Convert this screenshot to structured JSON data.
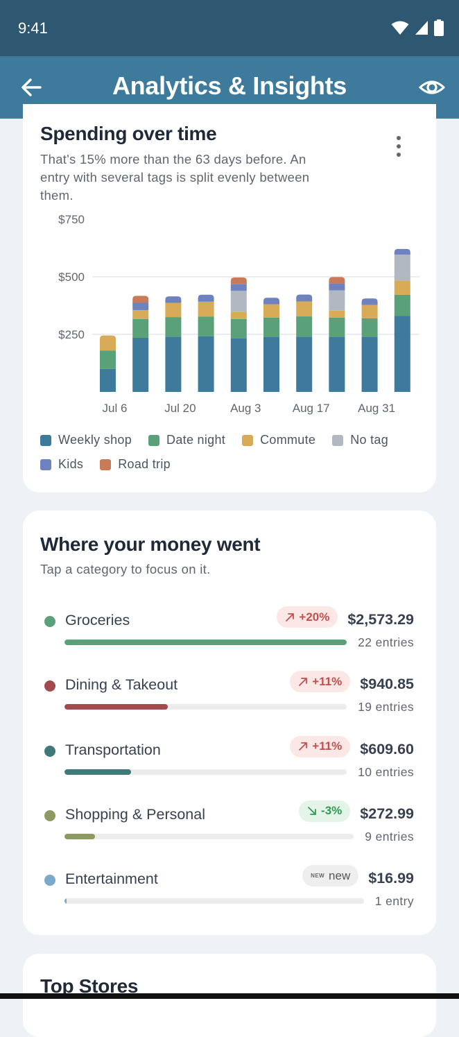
{
  "status_bar": {
    "time": "9:41"
  },
  "app_bar": {
    "title": "Analytics & Insights"
  },
  "spending_card": {
    "title": "Spending over time",
    "subtitle_lines": [
      "That's 15% more than the 63 days before. An",
      "entry with several tags is split evenly between",
      "them."
    ]
  },
  "chart_data": {
    "type": "bar",
    "stacked": true,
    "x_tick_labels": [
      "Jul 6",
      "Jul 20",
      "Aug 3",
      "Aug 17",
      "Aug 31"
    ],
    "y_tick_labels": [
      "$250",
      "$500",
      "$750"
    ],
    "ylim": [
      0,
      750
    ],
    "yticks": [
      250,
      500,
      750
    ],
    "grid": true,
    "legend_position": "bottom",
    "colors": {
      "Weekly shop": "#3d7a9c",
      "Date night": "#5aa17a",
      "Commute": "#d8ab58",
      "No tag": "#b2b8c2",
      "Kids": "#6f82c0",
      "Road trip": "#c97a58"
    },
    "series": [
      {
        "name": "Weekly shop",
        "values": [
          100,
          235,
          240,
          242,
          232,
          238,
          240,
          238,
          238,
          330
        ]
      },
      {
        "name": "Date night",
        "values": [
          80,
          82,
          85,
          85,
          85,
          85,
          88,
          85,
          82,
          92
        ]
      },
      {
        "name": "Commute",
        "values": [
          65,
          38,
          62,
          65,
          30,
          58,
          65,
          30,
          58,
          62
        ]
      },
      {
        "name": "No tag",
        "values": [
          0,
          0,
          0,
          0,
          92,
          0,
          0,
          88,
          0,
          112
        ]
      },
      {
        "name": "Kids",
        "values": [
          0,
          32,
          28,
          30,
          30,
          28,
          30,
          30,
          28,
          25
        ]
      },
      {
        "name": "Road trip",
        "values": [
          0,
          30,
          0,
          0,
          28,
          0,
          0,
          28,
          0,
          0
        ]
      }
    ]
  },
  "categories_card": {
    "title": "Where your money went",
    "subtitle": "Tap a category to focus on it.",
    "items": [
      {
        "name": "Groceries",
        "color": "#5aa17a",
        "trend": "up",
        "change": "+20%",
        "amount": "$2,573.29",
        "entries": "22 entries",
        "share": 1.0
      },
      {
        "name": "Dining & Takeout",
        "color": "#a24a4f",
        "trend": "up",
        "change": "+11%",
        "amount": "$940.85",
        "entries": "19 entries",
        "share": 0.366
      },
      {
        "name": "Transportation",
        "color": "#3d7a78",
        "trend": "up",
        "change": "+11%",
        "amount": "$609.60",
        "entries": "10 entries",
        "share": 0.237
      },
      {
        "name": "Shopping & Personal",
        "color": "#8c9a62",
        "trend": "down",
        "change": "-3%",
        "amount": "$272.99",
        "entries": "9 entries",
        "share": 0.106
      },
      {
        "name": "Entertainment",
        "color": "#7aa9c9",
        "trend": "new",
        "change": "new",
        "new_tag": "NEW",
        "amount": "$16.99",
        "entries": "1 entry",
        "share": 0.007
      }
    ]
  },
  "stores_card": {
    "title": "Top Stores"
  }
}
